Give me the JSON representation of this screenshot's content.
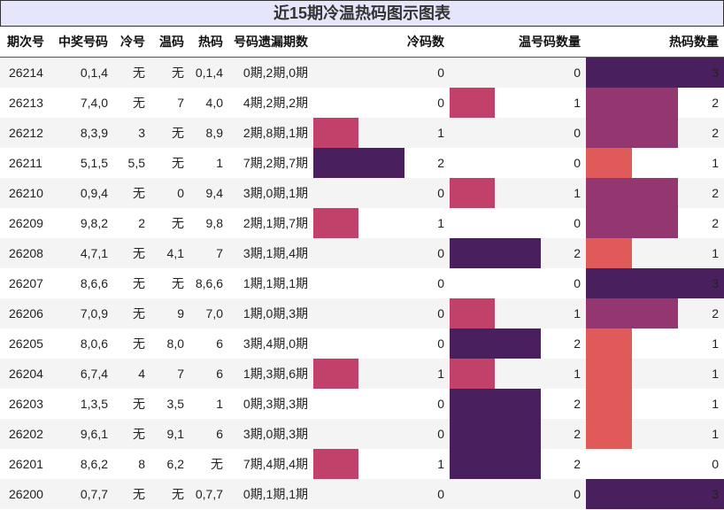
{
  "title": "近15期冷温热码图示图表",
  "headers": [
    "期次号",
    "中奖号码",
    "冷号",
    "温码",
    "热码",
    "号码遗漏期数",
    "冷码数",
    "温号码数量",
    "热码数量"
  ],
  "colors": {
    "level0": "",
    "level1": "#c2416a",
    "level2": "#4a1f5e",
    "level3": "#4a1f5e",
    "hot1": "#e05a5a",
    "hot2": "#943670",
    "hot3": "#4a1f5e"
  },
  "max_count": 3,
  "rows": [
    {
      "issue": "26214",
      "numbers": "0,1,4",
      "cold": "无",
      "warm": "无",
      "hot": "0,1,4",
      "miss": "0期,2期,0期",
      "cold_count": 0,
      "warm_count": 0,
      "hot_count": 3
    },
    {
      "issue": "26213",
      "numbers": "7,4,0",
      "cold": "无",
      "warm": "7",
      "hot": "4,0",
      "miss": "4期,2期,2期",
      "cold_count": 0,
      "warm_count": 1,
      "hot_count": 2
    },
    {
      "issue": "26212",
      "numbers": "8,3,9",
      "cold": "3",
      "warm": "无",
      "hot": "8,9",
      "miss": "2期,8期,1期",
      "cold_count": 1,
      "warm_count": 0,
      "hot_count": 2
    },
    {
      "issue": "26211",
      "numbers": "5,1,5",
      "cold": "5,5",
      "warm": "无",
      "hot": "1",
      "miss": "7期,2期,7期",
      "cold_count": 2,
      "warm_count": 0,
      "hot_count": 1
    },
    {
      "issue": "26210",
      "numbers": "0,9,4",
      "cold": "无",
      "warm": "0",
      "hot": "9,4",
      "miss": "3期,0期,1期",
      "cold_count": 0,
      "warm_count": 1,
      "hot_count": 2
    },
    {
      "issue": "26209",
      "numbers": "9,8,2",
      "cold": "2",
      "warm": "无",
      "hot": "9,8",
      "miss": "2期,1期,7期",
      "cold_count": 1,
      "warm_count": 0,
      "hot_count": 2
    },
    {
      "issue": "26208",
      "numbers": "4,7,1",
      "cold": "无",
      "warm": "4,1",
      "hot": "7",
      "miss": "3期,1期,4期",
      "cold_count": 0,
      "warm_count": 2,
      "hot_count": 1
    },
    {
      "issue": "26207",
      "numbers": "8,6,6",
      "cold": "无",
      "warm": "无",
      "hot": "8,6,6",
      "miss": "1期,1期,1期",
      "cold_count": 0,
      "warm_count": 0,
      "hot_count": 3
    },
    {
      "issue": "26206",
      "numbers": "7,0,9",
      "cold": "无",
      "warm": "9",
      "hot": "7,0",
      "miss": "1期,0期,3期",
      "cold_count": 0,
      "warm_count": 1,
      "hot_count": 2
    },
    {
      "issue": "26205",
      "numbers": "8,0,6",
      "cold": "无",
      "warm": "8,0",
      "hot": "6",
      "miss": "3期,4期,0期",
      "cold_count": 0,
      "warm_count": 2,
      "hot_count": 1
    },
    {
      "issue": "26204",
      "numbers": "6,7,4",
      "cold": "4",
      "warm": "7",
      "hot": "6",
      "miss": "1期,3期,6期",
      "cold_count": 1,
      "warm_count": 1,
      "hot_count": 1
    },
    {
      "issue": "26203",
      "numbers": "1,3,5",
      "cold": "无",
      "warm": "3,5",
      "hot": "1",
      "miss": "0期,3期,3期",
      "cold_count": 0,
      "warm_count": 2,
      "hot_count": 1
    },
    {
      "issue": "26202",
      "numbers": "9,6,1",
      "cold": "无",
      "warm": "9,1",
      "hot": "6",
      "miss": "3期,0期,3期",
      "cold_count": 0,
      "warm_count": 2,
      "hot_count": 1
    },
    {
      "issue": "26201",
      "numbers": "8,6,2",
      "cold": "8",
      "warm": "6,2",
      "hot": "无",
      "miss": "7期,4期,4期",
      "cold_count": 1,
      "warm_count": 2,
      "hot_count": 0
    },
    {
      "issue": "26200",
      "numbers": "0,7,7",
      "cold": "无",
      "warm": "无",
      "hot": "0,7,7",
      "miss": "0期,1期,1期",
      "cold_count": 0,
      "warm_count": 0,
      "hot_count": 3
    }
  ]
}
